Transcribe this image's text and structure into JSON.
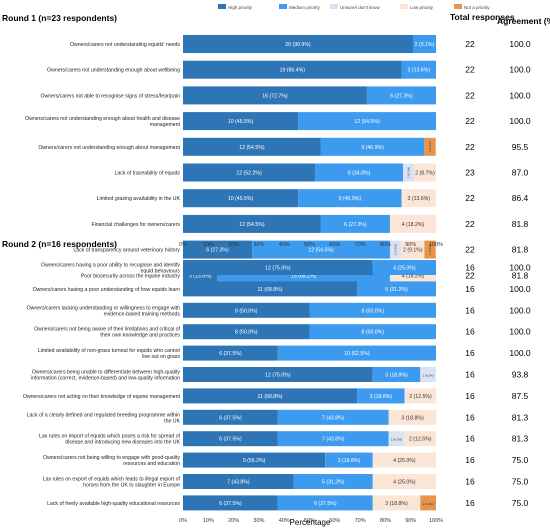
{
  "legend": [
    {
      "label": "High priority",
      "color": "#2e75b6"
    },
    {
      "label": "Medium priority",
      "color": "#3c9bef"
    },
    {
      "label": "Unsure/I don't know",
      "color": "#dae3f3"
    },
    {
      "label": "Low priority",
      "color": "#fbe5d6"
    },
    {
      "label": "Not a priority",
      "color": "#e8944b"
    }
  ],
  "headers": {
    "total": "Total responses",
    "agreement": "Agreement (%)"
  },
  "xlabel": "Percentage",
  "chart_data": {
    "type": "bar",
    "orientation": "horizontal",
    "stacked": true,
    "xlabel": "Percentage",
    "xlim": [
      0,
      100
    ],
    "xticks": [
      "0%",
      "10%",
      "20%",
      "30%",
      "40%",
      "50%",
      "60%",
      "70%",
      "80%",
      "90%",
      "100%"
    ],
    "groups": [
      {
        "title": "Round 1 (n=23 respondents)",
        "rows": [
          {
            "label": "Owners/carers not understanding equids' needs",
            "values": [
              90.9,
              9.1,
              0,
              0,
              0
            ],
            "labels": [
              "20 (90.9%)",
              "2 (9.1%)",
              "",
              "",
              ""
            ],
            "total": "22",
            "agreement": "100.0"
          },
          {
            "label": "Owners/carers not understanding enough about wellbeing",
            "values": [
              86.4,
              13.6,
              0,
              0,
              0
            ],
            "labels": [
              "19 (86.4%)",
              "3 (13.6%)",
              "",
              "",
              ""
            ],
            "total": "22",
            "agreement": "100.0"
          },
          {
            "label": "Owners/carers not able to recognise signs of stress/fear/pain",
            "values": [
              72.7,
              27.3,
              0,
              0,
              0
            ],
            "labels": [
              "16 (72.7%)",
              "6 (27.3%)",
              "",
              "",
              ""
            ],
            "total": "22",
            "agreement": "100.0"
          },
          {
            "label": "Owners/carers not understanding enough about health and disease management",
            "values": [
              45.5,
              54.5,
              0,
              0,
              0
            ],
            "labels": [
              "10 (45.5%)",
              "12 (54.5%)",
              "",
              "",
              ""
            ],
            "total": "22",
            "agreement": "100.0"
          },
          {
            "label": "Owners/carers not understanding enough about management",
            "values": [
              54.5,
              40.9,
              0,
              0,
              4.5
            ],
            "labels": [
              "12 (54.5%)",
              "9 (40.9%)",
              "",
              "",
              "1 (4.5%)"
            ],
            "total": "22",
            "agreement": "95.5"
          },
          {
            "label": "Lack of traceability of equids",
            "values": [
              52.2,
              34.8,
              4.3,
              8.7,
              0
            ],
            "labels": [
              "12 (52.2%)",
              "8 (34.8%)",
              "1 (4.3%)",
              "2 (8.7%)",
              ""
            ],
            "total": "23",
            "agreement": "87.0"
          },
          {
            "label": "Limited grazing availability in the UK",
            "values": [
              45.5,
              40.9,
              0,
              13.6,
              0
            ],
            "labels": [
              "10 (45.5%)",
              "9 (40.9%)",
              "",
              "3 (13.6%)",
              ""
            ],
            "total": "22",
            "agreement": "86.4"
          },
          {
            "label": "Financial challenges for owners/carers",
            "values": [
              54.5,
              27.3,
              0,
              18.2,
              0
            ],
            "labels": [
              "12 (54.5%)",
              "6 (27.3%)",
              "",
              "4 (18.2%)",
              ""
            ],
            "total": "22",
            "agreement": "81.8"
          },
          {
            "label": "Lack of transparency around veterinary history",
            "values": [
              27.3,
              54.5,
              4.5,
              9.1,
              4.5
            ],
            "labels": [
              "6 (27.3%)",
              "12 (54.5%)",
              "1 (4.5%)",
              "2 (9.1%)",
              "1 (4.5%)"
            ],
            "total": "22",
            "agreement": "81.8"
          },
          {
            "label": "Poor biosecurity across the equine industry",
            "values": [
              13.6,
              68.2,
              0,
              18.2,
              0
            ],
            "labels": [
              "3 (13.6%)",
              "15 (68.2%)",
              "",
              "4 (18.2%)",
              ""
            ],
            "total": "22",
            "agreement": "81.8"
          }
        ]
      },
      {
        "title": "Round 2 (n=16 respondents)",
        "rows": [
          {
            "label": "Owners/carers having a poor ability to recognise and identify equid behaviours",
            "values": [
              75.0,
              25.0,
              0,
              0,
              0
            ],
            "labels": [
              "12 (75.0%)",
              "4 (25.0%)",
              "",
              "",
              ""
            ],
            "total": "16",
            "agreement": "100.0"
          },
          {
            "label": "Owners/carers having a poor understanding of how equids learn",
            "values": [
              68.8,
              31.2,
              0,
              0,
              0
            ],
            "labels": [
              "11 (68.8%)",
              "5 (31.2%)",
              "",
              "",
              ""
            ],
            "total": "16",
            "agreement": "100.0"
          },
          {
            "label": "Owners/carers lacking understanding or willingness to engage with evidence-based training methods",
            "values": [
              50.0,
              50.0,
              0,
              0,
              0
            ],
            "labels": [
              "8 (50.0%)",
              "8 (50.0%)",
              "",
              "",
              ""
            ],
            "total": "16",
            "agreement": "100.0"
          },
          {
            "label": "Owners/carers not being aware of their limitations and critical of their own knowledge and practices",
            "values": [
              50.0,
              50.0,
              0,
              0,
              0
            ],
            "labels": [
              "8 (50.0%)",
              "8 (50.0%)",
              "",
              "",
              ""
            ],
            "total": "16",
            "agreement": "100.0"
          },
          {
            "label": "Limited availability of non-grass turnout for equids who cannot live out on grass",
            "values": [
              37.5,
              62.5,
              0,
              0,
              0
            ],
            "labels": [
              "6 (37.5%)",
              "10 (62.5%)",
              "",
              "",
              ""
            ],
            "total": "16",
            "agreement": "100.0"
          },
          {
            "label": "Owners/carers being unable to differentiate between high-quality information (correct, evidence-based) and low-quality information",
            "values": [
              75.0,
              18.8,
              6.2,
              0,
              0
            ],
            "labels": [
              "12 (75.0%)",
              "3 (18.8%)",
              "1 (6.2%)",
              "",
              ""
            ],
            "total": "16",
            "agreement": "93.8"
          },
          {
            "label": "Owners/carers not acting on their knowledge of equine management",
            "values": [
              68.8,
              18.8,
              0,
              12.5,
              0
            ],
            "labels": [
              "11 (68.8%)",
              "3 (18.8%)",
              "",
              "2 (12.5%)",
              ""
            ],
            "total": "16",
            "agreement": "87.5"
          },
          {
            "label": "Lack of a clearly defined and regulated breeding programme within the UK",
            "values": [
              37.5,
              43.8,
              0,
              18.8,
              0
            ],
            "labels": [
              "6 (37.5%)",
              "7 (43.8%)",
              "",
              "3 (18.8%)",
              ""
            ],
            "total": "16",
            "agreement": "81.3"
          },
          {
            "label": "Lax rules on import of equids which poses a risk for spread of disease and introducing new diseases into the UK",
            "values": [
              37.5,
              43.8,
              6.2,
              12.5,
              0
            ],
            "labels": [
              "6 (37.5%)",
              "7 (43.8%)",
              "1 (6.2%)",
              "2 (12.5%)",
              ""
            ],
            "total": "16",
            "agreement": "81.3"
          },
          {
            "label": "Owners/carers not being willing to engage with good-quality resources and education",
            "values": [
              56.2,
              18.8,
              0,
              25.0,
              0
            ],
            "labels": [
              "9 (56.2%)",
              "3 (18.8%)",
              "",
              "4 (25.0%)",
              ""
            ],
            "total": "16",
            "agreement": "75.0"
          },
          {
            "label": "Lax rules on export of equids which leads to illegal export of horses from the UK to slaughter in Europe",
            "values": [
              43.8,
              31.2,
              0,
              25.0,
              0
            ],
            "labels": [
              "7 (43.8%)",
              "5 (31.2%)",
              "",
              "4 (25.0%)",
              ""
            ],
            "total": "16",
            "agreement": "75.0"
          },
          {
            "label": "Lack of freely available high-quality educational resources",
            "values": [
              37.5,
              37.5,
              0,
              18.8,
              6.2
            ],
            "labels": [
              "6 (37.5%)",
              "6 (37.5%)",
              "",
              "3 (18.8%)",
              "1 (6.2%)"
            ],
            "total": "16",
            "agreement": "75.0"
          }
        ]
      }
    ]
  }
}
